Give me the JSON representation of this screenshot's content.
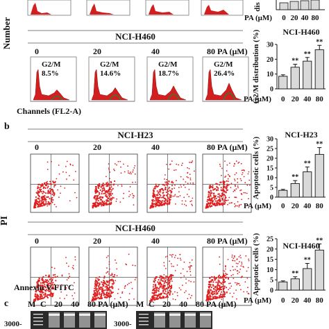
{
  "panel_b_label": "b",
  "panel_c_label": "c",
  "panel_a": {
    "y_label": "Number",
    "x_label": "Channels (FL2-A)",
    "top_row_label_fragment": "dis",
    "top_row_x_axis_label": "PA (μM)",
    "top_row_x_ticks": [
      "0",
      "20",
      "40",
      "80"
    ],
    "h460": {
      "cell_line": "NCI-H460",
      "doses": [
        "0",
        "20",
        "40",
        "80 PA (μM)"
      ],
      "g2m_label": "G2/M",
      "g2m_values": [
        "8.5%",
        "14.6%",
        "18.7%",
        "26.4%"
      ]
    }
  },
  "panel_b": {
    "y_label": "PI",
    "x_label": "Annexin V-FITC",
    "h23_title": "NCI-H23",
    "h460_title": "NCI-H460",
    "doses": [
      "0",
      "20",
      "40",
      "80 PA (μM)"
    ]
  },
  "panel_c": {
    "lanes": [
      "M",
      "C",
      "20",
      "40",
      "80 PA (μM)"
    ],
    "marker_label": "3000-"
  },
  "chart_data": [
    {
      "type": "bar",
      "title": "NCI-H460",
      "ylabel": "G2/M distribution (%)",
      "xlabel": "PA (μM)",
      "categories": [
        "0",
        "20",
        "40",
        "80"
      ],
      "values": [
        8.5,
        14.6,
        18.7,
        26.4
      ],
      "errors": [
        1,
        2,
        2.5,
        3
      ],
      "significance": [
        "",
        "**",
        "**",
        "**"
      ],
      "ylim": [
        0,
        30
      ],
      "yticks": [
        "0",
        "10",
        "20",
        "30"
      ]
    },
    {
      "type": "bar",
      "title": "NCI-H23",
      "ylabel": "Apoptotic cells (%)",
      "xlabel": "PA (μM)",
      "categories": [
        "0",
        "20",
        "40",
        "80"
      ],
      "values": [
        3.5,
        7,
        13,
        22
      ],
      "errors": [
        0.5,
        1.5,
        2.5,
        3.5
      ],
      "significance": [
        "",
        "**",
        "**",
        "**"
      ],
      "ylim": [
        0,
        30
      ],
      "yticks": [
        "0",
        "5",
        "10",
        "15",
        "20",
        "25",
        "30"
      ]
    },
    {
      "type": "bar",
      "title": "NCI-H460",
      "ylabel": "Apoptotic cells (%)",
      "xlabel": "PA (μM)",
      "categories": [
        "0",
        "20",
        "40",
        "80"
      ],
      "values": [
        4,
        5.5,
        10.5,
        19.5
      ],
      "errors": [
        0.5,
        1,
        2.5,
        3
      ],
      "significance": [
        "",
        "**",
        "**",
        "**"
      ],
      "ylim": [
        0,
        25
      ],
      "yticks": [
        "0",
        "5",
        "10",
        "15",
        "20",
        "25"
      ]
    }
  ]
}
